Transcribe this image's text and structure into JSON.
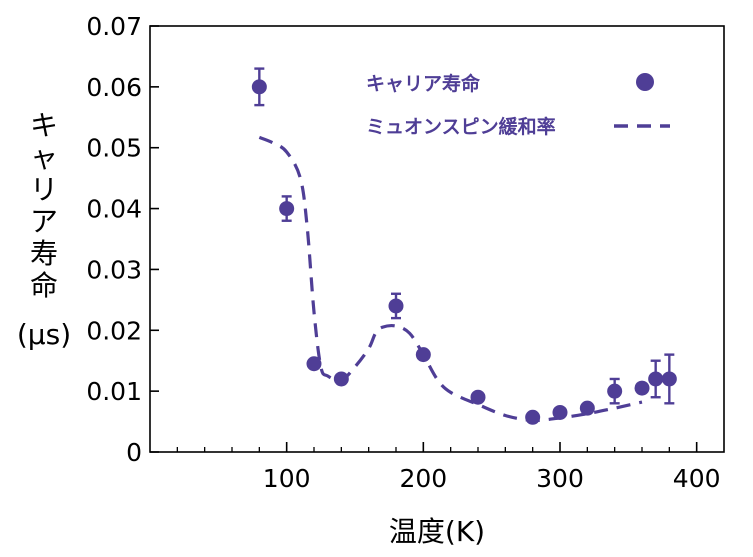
{
  "chart_data": {
    "type": "scatter",
    "title": "",
    "xlabel": "温度(K)",
    "ylabel_chars": [
      "キ",
      "ャ",
      "リ",
      "ア",
      "寿",
      "命"
    ],
    "ylabel_unit": "(μs)",
    "xlim": [
      0,
      420
    ],
    "ylim": [
      0,
      0.07
    ],
    "x_ticks": [
      100,
      200,
      300,
      400
    ],
    "x_minor_ticks": [
      20,
      40,
      60,
      80,
      120,
      140,
      160,
      180,
      220,
      240,
      260,
      280,
      320,
      340,
      360,
      380
    ],
    "y_ticks": [
      0,
      0.01,
      0.02,
      0.03,
      0.04,
      0.05,
      0.06,
      0.07
    ],
    "y_tick_labels": [
      "0",
      "0.01",
      "0.02",
      "0.03",
      "0.04",
      "0.05",
      "0.06",
      "0.07"
    ],
    "grid": false,
    "legend_position": "top-right",
    "colors": {
      "series": "#4f3e96",
      "axis": "#000000"
    },
    "series": [
      {
        "name": "キャリア寿命",
        "kind": "points-with-error-bars",
        "points": [
          {
            "x": 80,
            "y": 0.06,
            "err": 0.003
          },
          {
            "x": 100,
            "y": 0.04,
            "err": 0.002
          },
          {
            "x": 120,
            "y": 0.0145,
            "err": 0
          },
          {
            "x": 140,
            "y": 0.012,
            "err": 0
          },
          {
            "x": 180,
            "y": 0.024,
            "err": 0.002
          },
          {
            "x": 200,
            "y": 0.016,
            "err": 0
          },
          {
            "x": 240,
            "y": 0.009,
            "err": 0
          },
          {
            "x": 280,
            "y": 0.0057,
            "err": 0
          },
          {
            "x": 300,
            "y": 0.0065,
            "err": 0
          },
          {
            "x": 320,
            "y": 0.0072,
            "err": 0
          },
          {
            "x": 340,
            "y": 0.01,
            "err": 0.002
          },
          {
            "x": 360,
            "y": 0.0105,
            "err": 0
          },
          {
            "x": 370,
            "y": 0.012,
            "err": 0.003
          },
          {
            "x": 380,
            "y": 0.012,
            "err": 0.004
          }
        ]
      },
      {
        "name": "ミュオンスピン緩和率",
        "kind": "dashed-line",
        "x": [
          80,
          90,
          100,
          110,
          115,
          120,
          125,
          130,
          140,
          150,
          160,
          165,
          170,
          180,
          190,
          200,
          210,
          220,
          240,
          260,
          280,
          300,
          320,
          340,
          360
        ],
        "y": [
          0.0517,
          0.0508,
          0.0493,
          0.045,
          0.037,
          0.023,
          0.014,
          0.0125,
          0.0118,
          0.014,
          0.017,
          0.0195,
          0.0205,
          0.0207,
          0.0195,
          0.016,
          0.012,
          0.0098,
          0.0078,
          0.006,
          0.0052,
          0.0056,
          0.0063,
          0.0072,
          0.0082
        ]
      }
    ]
  }
}
